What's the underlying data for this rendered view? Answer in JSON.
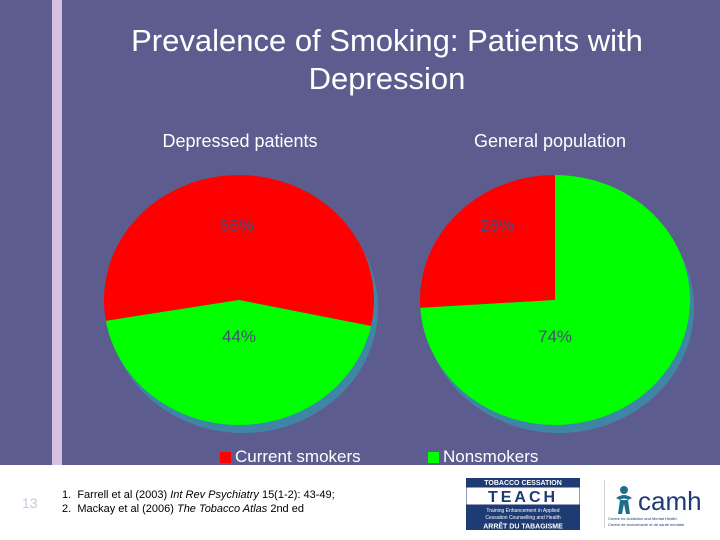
{
  "slide": {
    "title_line1": "Prevalence of Smoking: Patients with",
    "title_line2": "Depression",
    "slide_number": "13"
  },
  "chart_data": [
    {
      "type": "pie",
      "title": "Depressed patients",
      "categories": [
        "Current smokers",
        "Nonsmokers"
      ],
      "values": [
        56,
        44
      ],
      "labels": [
        "56%",
        "44%"
      ]
    },
    {
      "type": "pie",
      "title": "General population",
      "categories": [
        "Current smokers",
        "Nonsmokers"
      ],
      "values": [
        26,
        74
      ],
      "labels": [
        "26%",
        "74%"
      ]
    }
  ],
  "legend": {
    "smokers_label": "Current smokers",
    "nonsmokers_label": "Nonsmokers",
    "smokers_color": "#ff0000",
    "nonsmokers_color": "#00ff00"
  },
  "references": {
    "ref1_num": "1.",
    "ref1_a": "Farrell et al (2003) ",
    "ref1_journal": "Int Rev Psychiatry",
    "ref1_b": " 15(1-2): 43-49;",
    "ref2_num": "2.",
    "ref2_a": "Mackay et al (2006) ",
    "ref2_journal": "The Tobacco Atlas",
    "ref2_b": " 2nd ed"
  },
  "logos": {
    "teach_top": "TOBACCO CESSATION",
    "teach_word": "TEACH",
    "teach_sub1": "Training Enhancement in Applied",
    "teach_sub2": "Cessation Counselling and Health",
    "teach_fr": "ARRÊT DU TABAGISME",
    "camh_word": "camh",
    "camh_sub1": "Centre for Addiction and Mental Health",
    "camh_sub2": "Centre de toxicomanie et de santé mentale"
  }
}
